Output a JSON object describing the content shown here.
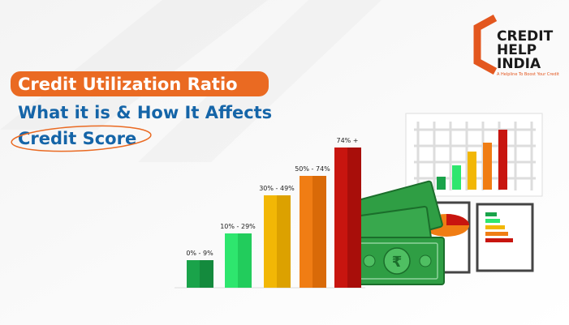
{
  "header": {
    "title": "Credit Utilization Ratio",
    "subtitle_line1": "What it is & How It Affects",
    "subtitle_line2": "Credit Score"
  },
  "logo": {
    "line1": "CREDIT",
    "line2": "HELP",
    "line3": "INDIA",
    "tagline": "A Helpline To Boost Your Credit"
  },
  "bars": [
    {
      "label": "0% - 9%"
    },
    {
      "label": "10% - 29%"
    },
    {
      "label": "30% - 49%"
    },
    {
      "label": "50% - 74%"
    },
    {
      "label": "74% +"
    }
  ]
}
